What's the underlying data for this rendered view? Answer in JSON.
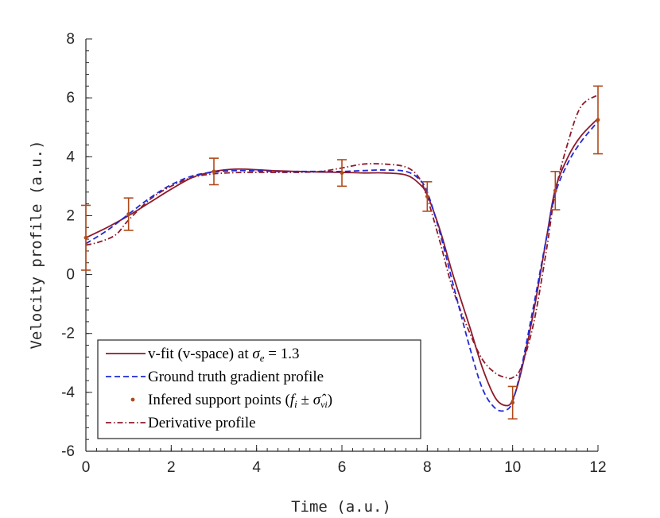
{
  "chart_data": {
    "type": "line",
    "title": "",
    "xlabel": "Time (a.u.)",
    "ylabel": "Velocity profile (a.u.)",
    "xlim": [
      0,
      12
    ],
    "ylim": [
      -6,
      8
    ],
    "xticks": [
      0,
      2,
      4,
      6,
      8,
      10,
      12
    ],
    "yticks": [
      -6,
      -4,
      -2,
      0,
      2,
      4,
      6,
      8
    ],
    "grid": false,
    "legend_position": "bottom-left",
    "series": [
      {
        "name": "v-fit (v-space) at σe = 1.3",
        "style": "solid",
        "color": "#8e1a2a",
        "x": [
          0,
          0.5,
          1,
          1.5,
          2,
          2.5,
          3,
          3.5,
          4,
          4.5,
          5,
          5.5,
          6,
          6.5,
          7,
          7.5,
          7.8,
          8,
          8.3,
          8.6,
          9,
          9.3,
          9.6,
          9.85,
          10,
          10.2,
          10.5,
          10.8,
          11,
          11.3,
          11.6,
          12
        ],
        "y": [
          1.25,
          1.6,
          2.0,
          2.45,
          2.9,
          3.3,
          3.5,
          3.58,
          3.56,
          3.52,
          3.5,
          3.48,
          3.47,
          3.45,
          3.45,
          3.38,
          3.1,
          2.7,
          1.5,
          0.0,
          -1.8,
          -3.2,
          -4.2,
          -4.45,
          -4.25,
          -3.3,
          -1.2,
          1.3,
          2.9,
          4.0,
          4.7,
          5.3
        ]
      },
      {
        "name": "Ground truth gradient profile",
        "style": "dashed",
        "color": "#1f2ad6",
        "x": [
          0,
          0.5,
          1,
          1.5,
          2,
          2.5,
          3,
          3.5,
          4,
          4.5,
          5,
          5.5,
          6,
          6.5,
          7,
          7.5,
          7.8,
          8,
          8.3,
          8.6,
          9,
          9.3,
          9.6,
          9.85,
          10,
          10.2,
          10.5,
          10.8,
          11,
          11.3,
          11.6,
          12
        ],
        "y": [
          1.05,
          1.5,
          2.05,
          2.6,
          3.05,
          3.35,
          3.48,
          3.53,
          3.52,
          3.5,
          3.5,
          3.5,
          3.5,
          3.53,
          3.55,
          3.5,
          3.25,
          2.8,
          1.4,
          -0.3,
          -2.5,
          -3.9,
          -4.55,
          -4.6,
          -4.3,
          -3.2,
          -1.0,
          1.3,
          2.75,
          3.8,
          4.5,
          5.2
        ]
      },
      {
        "name": "Derivative profile",
        "style": "dashdot",
        "color": "#8e1a2a",
        "x": [
          0,
          0.3,
          0.7,
          1,
          1.5,
          2,
          2.5,
          3,
          3.5,
          4,
          4.5,
          5,
          5.5,
          6,
          6.5,
          7,
          7.5,
          7.8,
          8,
          8.3,
          8.6,
          9,
          9.3,
          9.6,
          9.85,
          10,
          10.2,
          10.5,
          10.8,
          11,
          11.3,
          11.6,
          12
        ],
        "y": [
          1.0,
          1.1,
          1.35,
          1.85,
          2.55,
          3.0,
          3.3,
          3.42,
          3.46,
          3.47,
          3.47,
          3.47,
          3.5,
          3.62,
          3.75,
          3.75,
          3.65,
          3.3,
          2.6,
          1.1,
          -0.5,
          -2.0,
          -2.9,
          -3.35,
          -3.5,
          -3.5,
          -3.15,
          -1.6,
          0.9,
          2.8,
          4.5,
          5.7,
          6.1
        ]
      }
    ],
    "support_points": {
      "name": "Infered support points",
      "color": "#b04a1a",
      "points": [
        {
          "x": 0,
          "y": 1.25,
          "err": 1.1
        },
        {
          "x": 1,
          "y": 2.05,
          "err": 0.55
        },
        {
          "x": 3,
          "y": 3.5,
          "err": 0.45
        },
        {
          "x": 6,
          "y": 3.45,
          "err": 0.45
        },
        {
          "x": 8,
          "y": 2.65,
          "err": 0.5
        },
        {
          "x": 10,
          "y": -4.35,
          "err": 0.55
        },
        {
          "x": 11,
          "y": 2.85,
          "err": 0.65
        },
        {
          "x": 12,
          "y": 5.25,
          "err": 1.15
        }
      ]
    },
    "legend": {
      "entries": [
        {
          "key": "vfit",
          "marker": "solid",
          "color": "#8e1a2a",
          "text": "v-fit (v-space) at ",
          "math_sym": "σ",
          "math_sub": "e",
          "math_tail": " = 1.3"
        },
        {
          "key": "truth",
          "marker": "dashed",
          "color": "#1f2ad6",
          "text": "Ground truth gradient profile"
        },
        {
          "key": "support",
          "marker": "dot",
          "color": "#b04a1a",
          "text": "Infered support points (",
          "math_sym": "f",
          "math_sub": "i",
          "math_mid": " ± ",
          "math_sym2": "σ̂",
          "math_sub2": "vi",
          "math_tail": ")"
        },
        {
          "key": "deriv",
          "marker": "dashdot",
          "color": "#8e1a2a",
          "text": "Derivative profile"
        }
      ]
    }
  }
}
